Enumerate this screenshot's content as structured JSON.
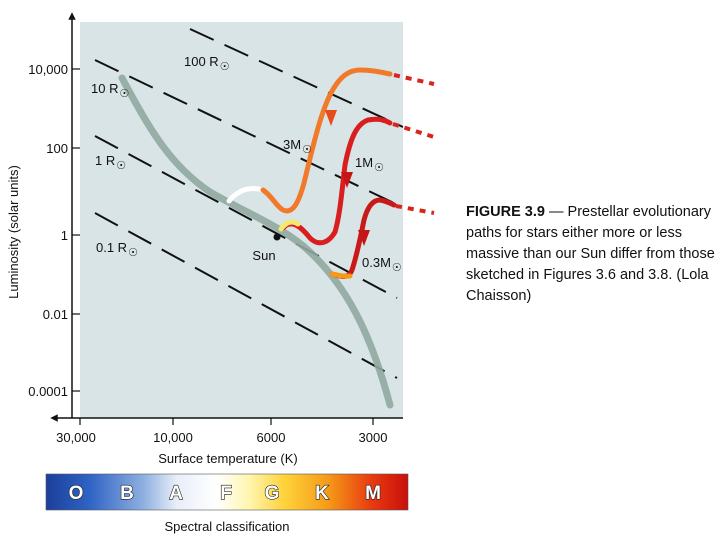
{
  "chart_data": {
    "type": "line",
    "xlabel": "Surface temperature (K)",
    "ylabel": "Luminosity (solar units)",
    "x_ticks": [
      "30,000",
      "10,000",
      "6000",
      "3000"
    ],
    "x_tick_values": [
      30000,
      10000,
      6000,
      3000
    ],
    "y_ticks": [
      "10,000",
      "100",
      "1",
      "0.01",
      "0.0001"
    ],
    "y_tick_values": [
      10000,
      100,
      1,
      0.01,
      0.0001
    ],
    "y_scale": "log",
    "x_direction": "decreasing",
    "radius_lines": [
      {
        "label": "100 R",
        "symbol": "☉"
      },
      {
        "label": "10 R",
        "symbol": "☉"
      },
      {
        "label": "1 R",
        "symbol": "☉"
      },
      {
        "label": "0.1 R",
        "symbol": "☉"
      }
    ],
    "tracks": [
      {
        "name": "3M",
        "symbol": "☉",
        "color": "#f07a2a"
      },
      {
        "name": "1M",
        "symbol": "☉",
        "color": "#d81e1e"
      },
      {
        "name": "0.3M",
        "symbol": "☉",
        "color": "#c91a1a"
      }
    ],
    "sun_label": "Sun",
    "main_sequence_color": "#8fa8a0",
    "plot_background": "#d9e4e6",
    "spectral_classes": [
      "O",
      "B",
      "A",
      "F",
      "G",
      "K",
      "M"
    ],
    "spectral_title": "Spectral classification"
  },
  "caption": {
    "title": "FIGURE 3.9",
    "text": " — Prestellar evolutionary paths for stars either more or less massive than our Sun differ from those sketched in Figures 3.6 and 3.8. (Lola Chaisson)"
  }
}
